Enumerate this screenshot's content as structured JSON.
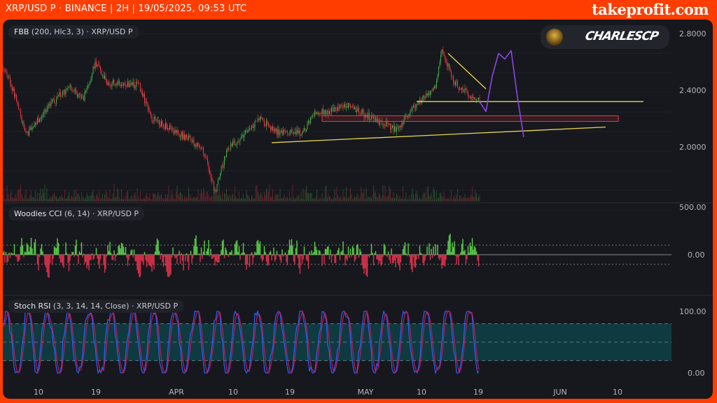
{
  "header": {
    "title": "XRP/USD P · BINANCE | 2H | 19/05/2025, 09:53 UTC",
    "brand": "takeprofit.com"
  },
  "panes": {
    "main": {
      "legend_name": "FBB",
      "legend_params": "(200, Hlc3, 3)",
      "legend_symbol": "· XRP/USD P"
    },
    "cci": {
      "legend_name": "Woodies CCI",
      "legend_params": "(6, 14)",
      "legend_symbol": "· XRP/USD P"
    },
    "stoch": {
      "legend_name": "Stoch RSI",
      "legend_params": "(3, 3, 14, 14, Close)",
      "legend_symbol": "· XRP/USD P"
    }
  },
  "author_badge": {
    "name": "CHARLESCP"
  },
  "colors": {
    "up": "#4caf50",
    "down": "#f23645",
    "trendline": "#e8d44d",
    "projection": "#8e44ec",
    "zone": "#f23645",
    "cci_green": "#5bd14a",
    "cci_red": "#e0314b",
    "stoch_k": "#2962ff",
    "stoch_d": "#c2185b",
    "band": "#0f3a40"
  },
  "chart_data": [
    {
      "type": "candlestick",
      "title": "XRP/USD P",
      "timeframe": "2H",
      "x_ticks": [
        "10",
        "19",
        "APR",
        "10",
        "19",
        "MAY",
        "10",
        "19",
        "JUN",
        "10"
      ],
      "y_ticks": [
        "2.8000",
        "2.4000",
        "2.0000"
      ],
      "ylim": [
        1.6,
        2.85
      ],
      "close_anchors": [
        [
          "2025-03-01",
          2.35
        ],
        [
          "2025-03-03",
          2.72
        ],
        [
          "2025-03-06",
          2.4
        ],
        [
          "2025-03-08",
          2.08
        ],
        [
          "2025-03-11",
          2.25
        ],
        [
          "2025-03-13",
          2.35
        ],
        [
          "2025-03-15",
          2.42
        ],
        [
          "2025-03-17",
          2.33
        ],
        [
          "2025-03-19",
          2.6
        ],
        [
          "2025-03-21",
          2.45
        ],
        [
          "2025-03-24",
          2.45
        ],
        [
          "2025-03-26",
          2.43
        ],
        [
          "2025-03-28",
          2.2
        ],
        [
          "2025-04-01",
          2.1
        ],
        [
          "2025-04-03",
          2.05
        ],
        [
          "2025-04-05",
          2.0
        ],
        [
          "2025-04-07",
          1.68
        ],
        [
          "2025-04-09",
          2.0
        ],
        [
          "2025-04-11",
          2.05
        ],
        [
          "2025-04-14",
          2.2
        ],
        [
          "2025-04-17",
          2.1
        ],
        [
          "2025-04-21",
          2.1
        ],
        [
          "2025-04-23",
          2.25
        ],
        [
          "2025-04-25",
          2.24
        ],
        [
          "2025-04-28",
          2.3
        ],
        [
          "2025-05-02",
          2.2
        ],
        [
          "2025-05-06",
          2.12
        ],
        [
          "2025-05-08",
          2.25
        ],
        [
          "2025-05-10",
          2.35
        ],
        [
          "2025-05-12",
          2.42
        ],
        [
          "2025-05-13",
          2.68
        ],
        [
          "2025-05-15",
          2.45
        ],
        [
          "2025-05-17",
          2.38
        ],
        [
          "2025-05-19",
          2.32
        ]
      ],
      "annotations": {
        "resistance_line": {
          "from": [
            "2025-05-09",
            2.32
          ],
          "to": [
            "2025-06-14",
            2.32
          ]
        },
        "support_line": {
          "from": [
            "2025-04-16",
            2.03
          ],
          "to": [
            "2025-06-08",
            2.14
          ]
        },
        "descending_line": {
          "from": [
            "2025-05-14",
            2.66
          ],
          "to": [
            "2025-05-20",
            2.41
          ]
        },
        "zone_box": {
          "from": "2025-04-24",
          "to": "2025-06-10",
          "low": 2.18,
          "high": 2.22
        },
        "projection_path": [
          [
            "2025-05-19",
            2.32
          ],
          [
            "2025-05-20",
            2.25
          ],
          [
            "2025-05-21",
            2.5
          ],
          [
            "2025-05-22",
            2.66
          ],
          [
            "2025-05-23",
            2.62
          ],
          [
            "2025-05-24",
            2.68
          ],
          [
            "2025-05-25",
            2.35
          ],
          [
            "2025-05-26",
            2.07
          ]
        ]
      }
    },
    {
      "type": "histogram",
      "title": "Woodies CCI (6, 14)",
      "y_ticks": [
        "500.00",
        "0.00"
      ],
      "levels": [
        100,
        0,
        -100
      ]
    },
    {
      "type": "line",
      "title": "Stoch RSI (3, 3, 14, 14, Close)",
      "y_ticks": [
        "100.00",
        "0.00"
      ],
      "ylim": [
        0,
        100
      ],
      "band": [
        20,
        80
      ],
      "mid": 50
    }
  ]
}
